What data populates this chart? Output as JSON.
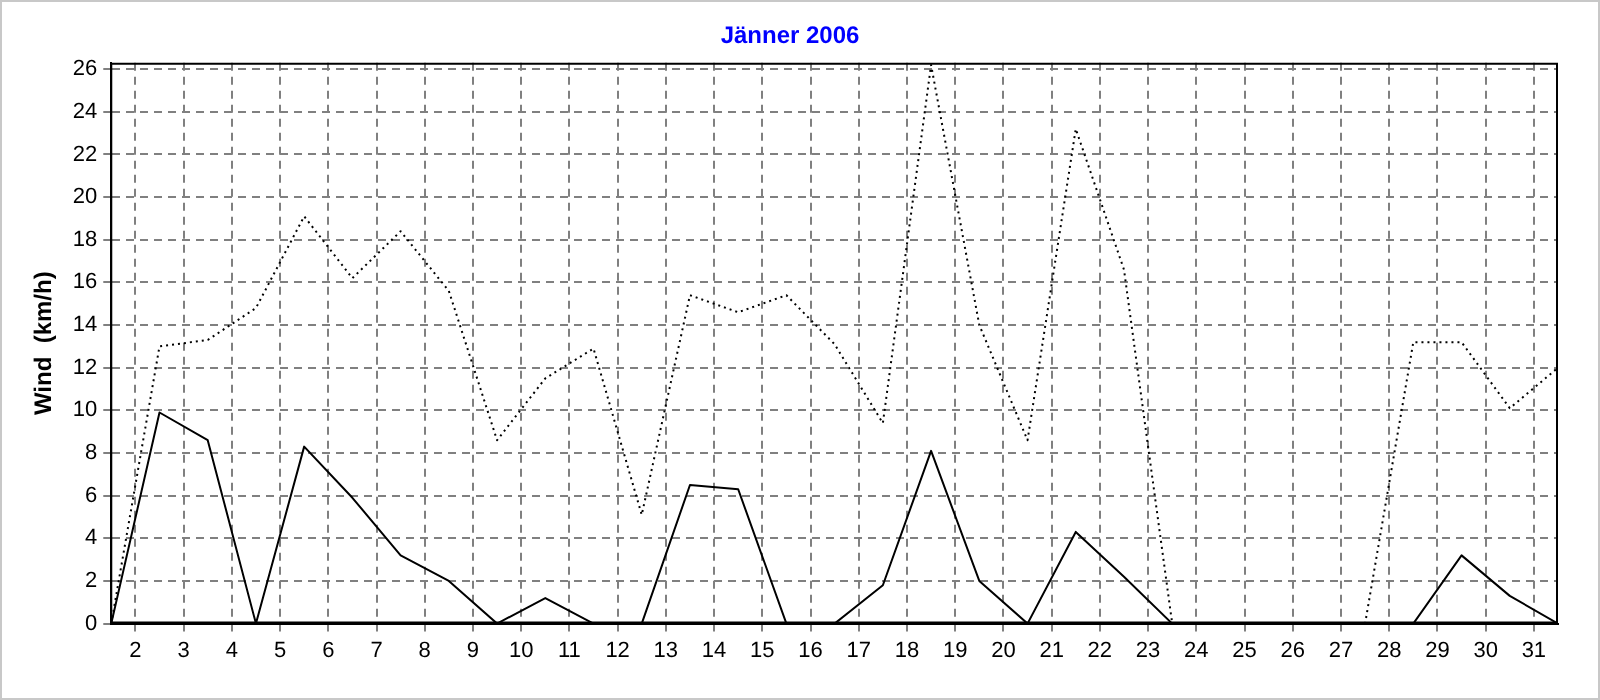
{
  "chart_data": {
    "type": "line",
    "title": "Jänner 2006",
    "ylabel": "Wind  (km/h)",
    "x": [
      1.5,
      2.5,
      3.5,
      4.5,
      5.5,
      6.5,
      7.5,
      8.5,
      9.5,
      10.5,
      11.5,
      12.5,
      13.5,
      14.5,
      15.5,
      16.5,
      17.5,
      18.5,
      19.5,
      20.5,
      21.5,
      22.5,
      23.5,
      24.5,
      25.5,
      26.5,
      27.5,
      28.5,
      29.5,
      30.5,
      31.5
    ],
    "series": [
      {
        "color": "#000000",
        "line_style": "solid",
        "values": [
          0,
          9.9,
          8.6,
          0,
          8.3,
          5.9,
          3.2,
          2.0,
          0,
          1.2,
          0,
          0,
          6.5,
          6.3,
          0,
          0,
          1.8,
          8.1,
          2.0,
          0,
          4.3,
          2.2,
          0,
          0,
          0,
          0,
          0,
          0,
          3.2,
          1.3,
          0
        ]
      },
      {
        "color": "#000000",
        "line_style": "dotted",
        "values": [
          0,
          13.0,
          13.3,
          14.8,
          19.1,
          16.2,
          18.4,
          15.6,
          8.6,
          11.5,
          12.9,
          5.1,
          15.4,
          14.6,
          15.4,
          13.1,
          9.4,
          26.2,
          14.0,
          8.6,
          23.2,
          16.6,
          0,
          0,
          0,
          0,
          0,
          13.2,
          13.2,
          10.1,
          12.0
        ]
      }
    ],
    "xlim": [
      1.5,
      31.5
    ],
    "xticks": [
      2,
      3,
      4,
      5,
      6,
      7,
      8,
      9,
      10,
      11,
      12,
      13,
      14,
      15,
      16,
      17,
      18,
      19,
      20,
      21,
      22,
      23,
      24,
      25,
      26,
      27,
      28,
      29,
      30,
      31
    ],
    "ylim": [
      0,
      26.3
    ],
    "yticks": [
      0,
      2,
      4,
      6,
      8,
      10,
      12,
      14,
      16,
      18,
      20,
      22,
      24,
      26
    ],
    "grid": true,
    "legend": false,
    "marker": "none"
  }
}
